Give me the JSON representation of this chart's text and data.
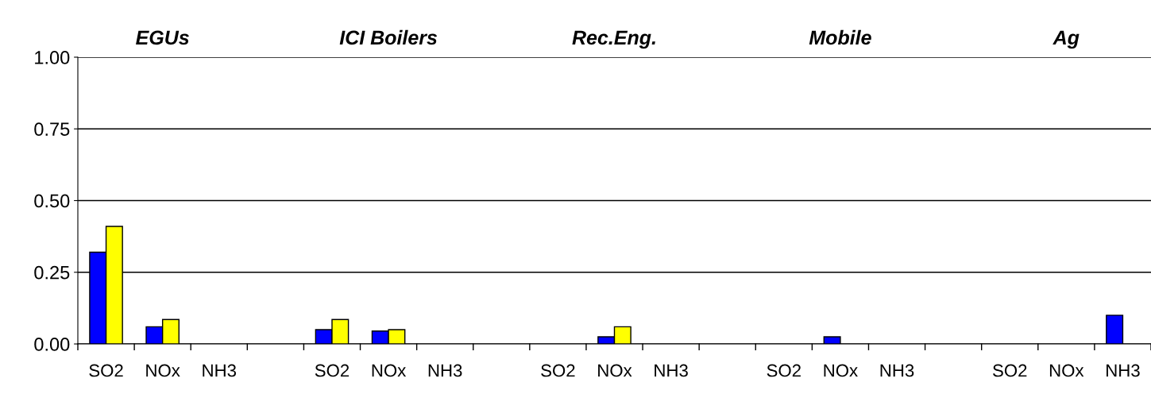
{
  "chart_data": {
    "type": "bar",
    "categories": [
      "SO2",
      "NOx",
      "NH3",
      null,
      "SO2",
      "NOx",
      "NH3",
      null,
      "SO2",
      "NOx",
      "NH3",
      null,
      "SO2",
      "NOx",
      "NH3",
      null,
      "SO2",
      "NOx",
      "NH3"
    ],
    "series": [
      {
        "color": "#0000ff",
        "values": [
          0.32,
          0.06,
          null,
          null,
          0.05,
          0.045,
          null,
          null,
          null,
          0.025,
          null,
          null,
          null,
          0.025,
          null,
          null,
          null,
          null,
          0.1
        ]
      },
      {
        "color": "#ffff00",
        "values": [
          0.41,
          0.085,
          null,
          null,
          0.085,
          0.05,
          null,
          null,
          null,
          0.06,
          null,
          null,
          null,
          null,
          null,
          null,
          null,
          null,
          null
        ]
      }
    ],
    "annotations": [
      "EGUs",
      "ICI Boilers",
      "Rec.Eng.",
      "Mobile",
      "Ag"
    ],
    "ylim": [
      0,
      1.0
    ],
    "yticks": [
      {
        "value": 0,
        "label": "0.00"
      },
      {
        "value": 0.25,
        "label": "0.25"
      },
      {
        "value": 0.5,
        "label": "0.50"
      },
      {
        "value": 0.75,
        "label": "0.75"
      },
      {
        "value": 1.0,
        "label": "1.00"
      }
    ],
    "grid": "y",
    "legend": false
  }
}
